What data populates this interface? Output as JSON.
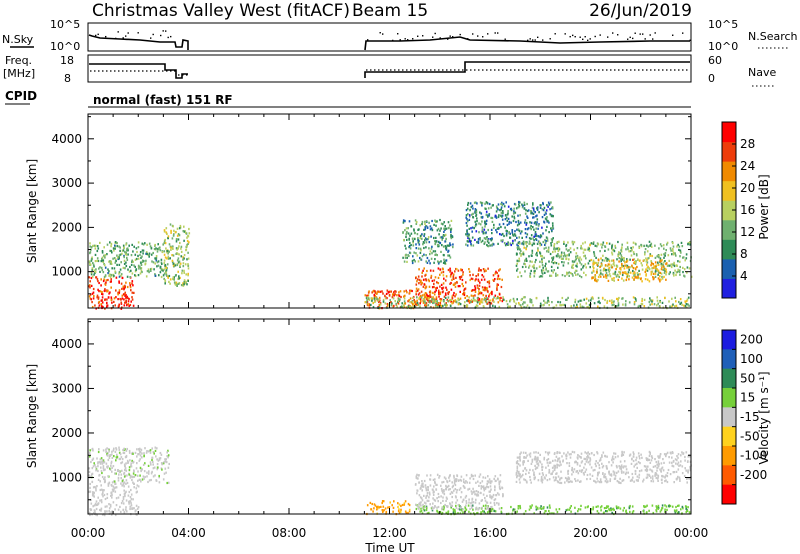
{
  "header": {
    "title": "Christmas Valley West (fitACF)",
    "beam": "Beam 15",
    "date": "26/Jun/2019"
  },
  "summary_panels": {
    "nsky_label": "N.Sky",
    "nsky_ticks": [
      "10^5",
      "10^0"
    ],
    "nsearch_label": "N.Search",
    "nsearch_ticks": [
      "10^5",
      "10^0"
    ],
    "freq_label": "Freq.",
    "freq_unit": "[MHz]",
    "freq_ticks": [
      "18",
      "8"
    ],
    "nave_label": "Nave",
    "nave_ticks": [
      "60",
      "0"
    ],
    "cpid_label": "CPID",
    "cpid_value": "normal (fast) 151 RF"
  },
  "colors": {
    "power": [
      "#2020e0",
      "#1a60b0",
      "#2e8b57",
      "#6fb06f",
      "#b8d060",
      "#f0c020",
      "#f08a00",
      "#ee3c0a",
      "#ff0000"
    ],
    "velocity": [
      "#1c1ce0",
      "#1f5fb8",
      "#2e8b57",
      "#76d03a",
      "#c8c8c8",
      "#ffd21e",
      "#ff9b00",
      "#ff5a00",
      "#ff0000"
    ]
  },
  "chart_data": [
    {
      "type": "heatmap",
      "title": "",
      "quantity": "Power",
      "ylabel": "Slant Range [km]",
      "xlabel": "Time UT",
      "x_ticks": [
        "00:00",
        "04:00",
        "08:00",
        "12:00",
        "16:00",
        "20:00",
        "00:00"
      ],
      "y_ticks": [
        1000,
        2000,
        3000,
        4000
      ],
      "ylim": [
        180,
        4560
      ],
      "xlim_hours": [
        0,
        24
      ],
      "colorbar": {
        "label": "Power [dB]",
        "ticks": [
          4,
          8,
          12,
          16,
          20,
          24,
          28
        ],
        "range": [
          0,
          32
        ]
      },
      "regions": [
        {
          "t_start": 0.0,
          "t_end": 1.8,
          "range_start": 180,
          "range_end": 900,
          "value_db": 28
        },
        {
          "t_start": 0.0,
          "t_end": 3.2,
          "range_start": 900,
          "range_end": 1700,
          "value_db": 12
        },
        {
          "t_start": 3.0,
          "t_end": 4.0,
          "range_start": 700,
          "range_end": 2100,
          "value_db": 14
        },
        {
          "t_start": 11.0,
          "t_end": 14.0,
          "range_start": 200,
          "range_end": 600,
          "value_db": 26
        },
        {
          "t_start": 13.0,
          "t_end": 16.5,
          "range_start": 300,
          "range_end": 1100,
          "value_db": 26
        },
        {
          "t_start": 11.0,
          "t_end": 24.0,
          "range_start": 200,
          "range_end": 450,
          "value_db": 14
        },
        {
          "t_start": 12.5,
          "t_end": 14.5,
          "range_start": 1200,
          "range_end": 2200,
          "value_db": 10
        },
        {
          "t_start": 15.0,
          "t_end": 18.5,
          "range_start": 1600,
          "range_end": 2600,
          "value_db": 8
        },
        {
          "t_start": 17.0,
          "t_end": 24.0,
          "range_start": 900,
          "range_end": 1700,
          "value_db": 13
        },
        {
          "t_start": 20.0,
          "t_end": 23.0,
          "range_start": 800,
          "range_end": 1300,
          "value_db": 20
        }
      ]
    },
    {
      "type": "heatmap",
      "title": "",
      "quantity": "Velocity",
      "ylabel": "Slant Range [km]",
      "xlabel": "Time UT",
      "x_ticks": [
        "00:00",
        "04:00",
        "08:00",
        "12:00",
        "16:00",
        "20:00",
        "00:00"
      ],
      "y_ticks": [
        1000,
        2000,
        3000,
        4000
      ],
      "ylim": [
        180,
        4560
      ],
      "xlim_hours": [
        0,
        24
      ],
      "colorbar": {
        "label": "Velocity [m s⁻¹]",
        "ticks": [
          200,
          100,
          50,
          15,
          -15,
          -50,
          -100,
          -200
        ]
      },
      "regions": [
        {
          "t_start": 0.0,
          "t_end": 2.0,
          "range_start": 180,
          "range_end": 900,
          "value_ms": 0
        },
        {
          "t_start": 0.0,
          "t_end": 3.2,
          "range_start": 900,
          "range_end": 1700,
          "value_ms": 5
        },
        {
          "t_start": 11.0,
          "t_end": 12.8,
          "range_start": 200,
          "range_end": 500,
          "value_ms": -60
        },
        {
          "t_start": 13.0,
          "t_end": 24.0,
          "range_start": 200,
          "range_end": 400,
          "value_ms": 40
        },
        {
          "t_start": 13.0,
          "t_end": 16.5,
          "range_start": 300,
          "range_end": 1100,
          "value_ms": 0
        },
        {
          "t_start": 17.0,
          "t_end": 24.0,
          "range_start": 900,
          "range_end": 1600,
          "value_ms": 0
        }
      ]
    }
  ]
}
